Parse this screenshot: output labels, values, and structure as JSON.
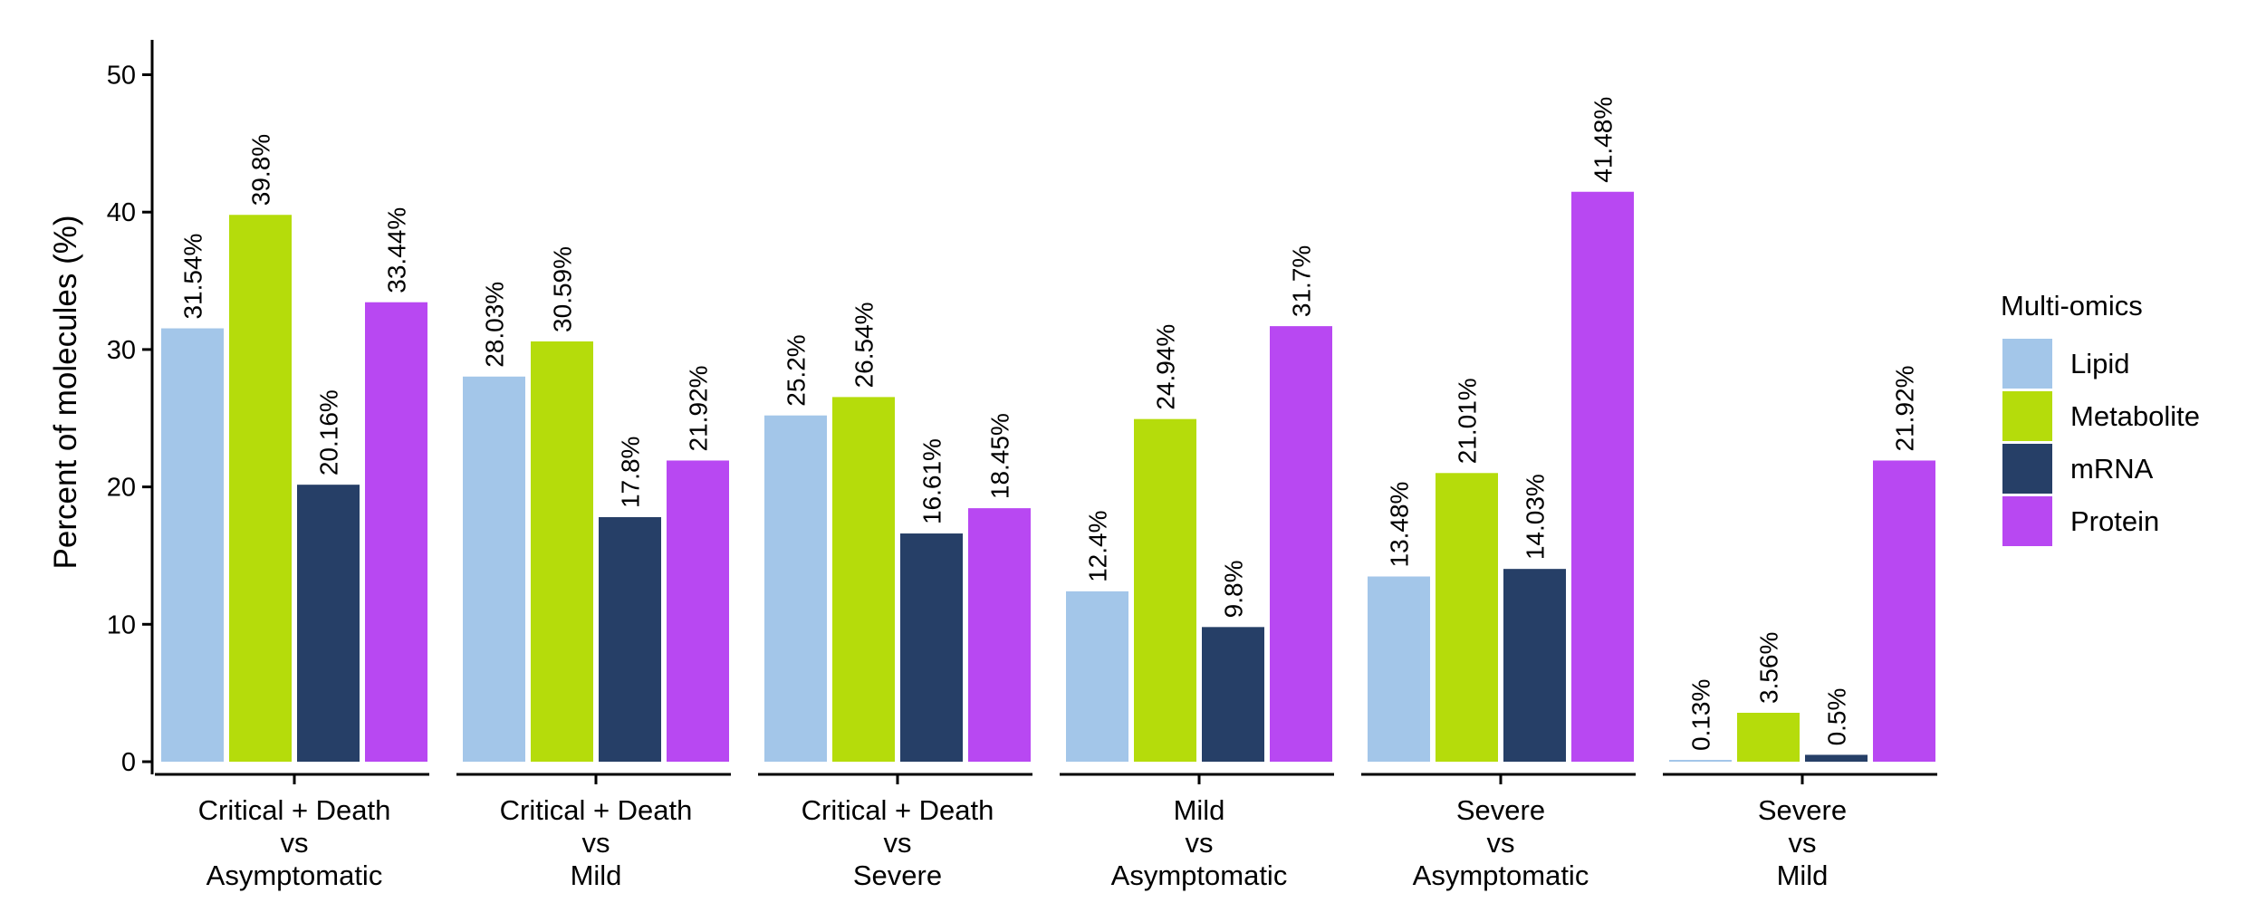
{
  "chart_data": {
    "type": "bar",
    "title": "",
    "xlabel": "",
    "ylabel": "Percent of molecules (%)",
    "ylim": [
      0,
      52
    ],
    "yticks": [
      0,
      10,
      20,
      30,
      40,
      50
    ],
    "grid": false,
    "legend": {
      "title": "Multi-omics",
      "placement": "right"
    },
    "categories": [
      [
        "Critical + Death",
        "vs",
        "Asymptomatic"
      ],
      [
        "Critical + Death",
        "vs",
        "Mild"
      ],
      [
        "Critical + Death",
        "vs",
        "Severe"
      ],
      [
        "Mild",
        "vs",
        "Asymptomatic"
      ],
      [
        "Severe",
        "vs",
        "Asymptomatic"
      ],
      [
        "Severe",
        "vs",
        "Mild"
      ]
    ],
    "series": [
      {
        "name": "Lipid",
        "color": "#a3c6e9",
        "values": [
          31.54,
          28.03,
          25.2,
          12.4,
          13.48,
          0.13
        ],
        "labels": [
          "31.54%",
          "28.03%",
          "25.2%",
          "12.4%",
          "13.48%",
          "0.13%"
        ]
      },
      {
        "name": "Metabolite",
        "color": "#b5dc0b",
        "values": [
          39.8,
          30.59,
          26.54,
          24.94,
          21.01,
          3.56
        ],
        "labels": [
          "39.8%",
          "30.59%",
          "26.54%",
          "24.94%",
          "21.01%",
          "3.56%"
        ]
      },
      {
        "name": "mRNA",
        "color": "#263f67",
        "values": [
          20.16,
          17.8,
          16.61,
          9.8,
          14.03,
          0.5
        ],
        "labels": [
          "20.16%",
          "17.8%",
          "16.61%",
          "9.8%",
          "14.03%",
          "0.5%"
        ]
      },
      {
        "name": "Protein",
        "color": "#b848f2",
        "values": [
          33.44,
          21.92,
          18.45,
          31.7,
          41.48,
          21.92
        ],
        "labels": [
          "33.44%",
          "21.92%",
          "18.45%",
          "31.7%",
          "41.48%",
          "21.92%"
        ]
      }
    ]
  }
}
